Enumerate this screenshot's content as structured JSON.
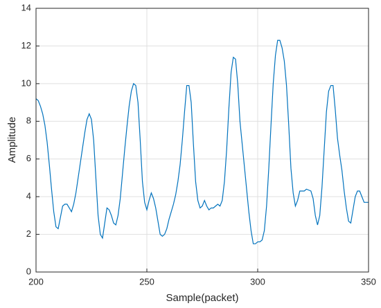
{
  "chart_data": {
    "type": "line",
    "xlabel": "Sample(packet)",
    "ylabel": "Amplitude",
    "x": [
      200,
      201,
      202,
      203,
      204,
      205,
      206,
      207,
      208,
      209,
      210,
      211,
      212,
      213,
      214,
      215,
      216,
      217,
      218,
      219,
      220,
      221,
      222,
      223,
      224,
      225,
      226,
      227,
      228,
      229,
      230,
      231,
      232,
      233,
      234,
      235,
      236,
      237,
      238,
      239,
      240,
      241,
      242,
      243,
      244,
      245,
      246,
      247,
      248,
      249,
      250,
      251,
      252,
      253,
      254,
      255,
      256,
      257,
      258,
      259,
      260,
      261,
      262,
      263,
      264,
      265,
      266,
      267,
      268,
      269,
      270,
      271,
      272,
      273,
      274,
      275,
      276,
      277,
      278,
      279,
      280,
      281,
      282,
      283,
      284,
      285,
      286,
      287,
      288,
      289,
      290,
      291,
      292,
      293,
      294,
      295,
      296,
      297,
      298,
      299,
      300,
      301,
      302,
      303,
      304,
      305,
      306,
      307,
      308,
      309,
      310,
      311,
      312,
      313,
      314,
      315,
      316,
      317,
      318,
      319,
      320,
      321,
      322,
      323,
      324,
      325,
      326,
      327,
      328,
      329,
      330,
      331,
      332,
      333,
      334,
      335,
      336,
      337,
      338,
      339,
      340,
      341,
      342,
      343,
      344,
      345,
      346,
      347,
      348,
      349,
      350
    ],
    "series": [
      {
        "color": "#0072BD",
        "values": [
          9.2,
          9.1,
          8.8,
          8.4,
          7.8,
          6.9,
          5.7,
          4.4,
          3.2,
          2.4,
          2.3,
          2.9,
          3.5,
          3.6,
          3.6,
          3.4,
          3.2,
          3.6,
          4.2,
          5.0,
          5.8,
          6.6,
          7.4,
          8.1,
          8.4,
          8.1,
          7.0,
          5.0,
          3.0,
          2.0,
          1.8,
          2.6,
          3.4,
          3.3,
          3.0,
          2.6,
          2.5,
          3.0,
          3.9,
          5.2,
          6.5,
          7.7,
          8.8,
          9.6,
          10.0,
          9.9,
          9.0,
          7.0,
          4.8,
          3.7,
          3.3,
          3.8,
          4.2,
          3.9,
          3.4,
          2.7,
          2.0,
          1.9,
          2.0,
          2.3,
          2.8,
          3.2,
          3.6,
          4.1,
          4.8,
          5.7,
          7.0,
          8.5,
          9.9,
          9.9,
          9.0,
          6.8,
          4.8,
          3.8,
          3.4,
          3.5,
          3.8,
          3.5,
          3.3,
          3.4,
          3.4,
          3.5,
          3.6,
          3.5,
          3.8,
          4.8,
          6.5,
          8.7,
          10.6,
          11.4,
          11.3,
          10.0,
          8.0,
          6.8,
          5.6,
          4.4,
          3.2,
          2.2,
          1.5,
          1.5,
          1.6,
          1.6,
          1.7,
          2.2,
          3.5,
          5.5,
          7.8,
          10.0,
          11.5,
          12.3,
          12.3,
          11.9,
          11.2,
          9.9,
          7.8,
          5.5,
          4.2,
          3.5,
          3.8,
          4.3,
          4.3,
          4.3,
          4.4,
          4.35,
          4.3,
          3.9,
          3.0,
          2.5,
          3.0,
          4.5,
          6.5,
          8.5,
          9.6,
          9.9,
          9.9,
          8.6,
          7.1,
          6.2,
          5.4,
          4.3,
          3.4,
          2.7,
          2.6,
          3.3,
          4.0,
          4.3,
          4.3,
          4.0,
          3.7,
          3.7,
          3.7
        ]
      }
    ],
    "xlim": [
      200,
      350
    ],
    "xticks": [
      200,
      250,
      300,
      350
    ],
    "ylim": [
      0,
      14
    ],
    "yticks": [
      0,
      2,
      4,
      6,
      8,
      10,
      12,
      14
    ],
    "grid": true
  }
}
